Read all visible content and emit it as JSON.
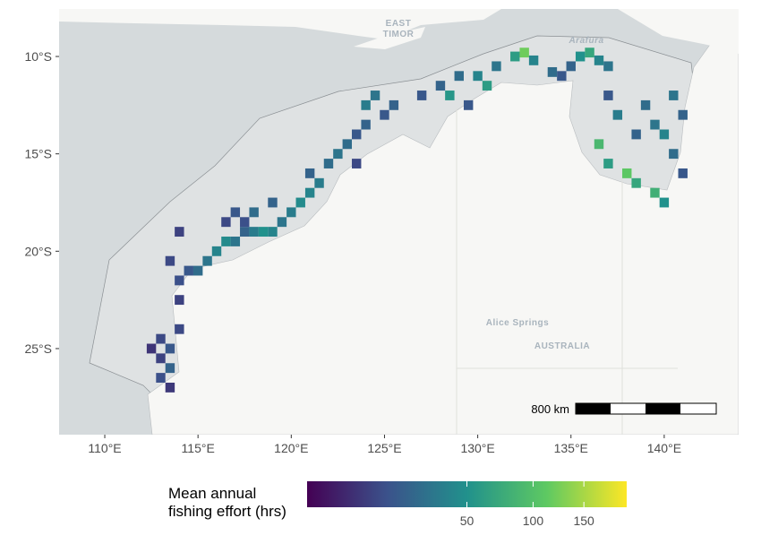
{
  "map": {
    "xlim": [
      107.55,
      143.99
    ],
    "ylim": [
      -29.42,
      -7.56
    ],
    "xticks": [
      {
        "value": 110,
        "label": "110°E"
      },
      {
        "value": 115,
        "label": "115°E"
      },
      {
        "value": 120,
        "label": "120°E"
      },
      {
        "value": 125,
        "label": "125°E"
      },
      {
        "value": 130,
        "label": "130°E"
      },
      {
        "value": 135,
        "label": "135°E"
      },
      {
        "value": 140,
        "label": "140°E"
      }
    ],
    "yticks": [
      {
        "value": -10,
        "label": "10°S"
      },
      {
        "value": -15,
        "label": "15°S"
      },
      {
        "value": -20,
        "label": "20°S"
      },
      {
        "value": -25,
        "label": "25°S"
      }
    ],
    "places": {
      "east_timor": [
        "EAST",
        "TIMOR"
      ],
      "sea": "Arafura",
      "town": "Alice Springs",
      "country": "AUSTRALIA"
    },
    "scale_bar": "800 km",
    "colorbar": {
      "title": "Mean annual\nfishing effort (hrs)",
      "scale": "sqrt",
      "lim": [
        0,
        200
      ],
      "ticks": [
        50,
        100,
        150
      ]
    },
    "cells": {
      "lon": [
        113,
        113.5,
        113,
        113.5,
        113,
        113.5,
        114,
        112.5,
        114,
        114,
        114.5,
        115,
        115.5,
        116,
        113.5,
        114,
        116.5,
        117,
        117.5,
        117,
        117.5,
        118,
        118.5,
        119,
        119.5,
        118,
        119,
        116.5,
        120,
        120.5,
        121,
        121.5,
        121,
        122,
        122.5,
        123,
        123.5,
        124,
        124,
        124.5,
        125,
        123.5,
        125.5,
        127,
        128,
        128.5,
        129,
        130,
        130.5,
        129.5,
        131,
        132,
        132.5,
        133,
        134,
        134.5,
        135.5,
        136,
        136.5,
        137,
        135,
        137,
        137.5,
        136.5,
        137,
        138,
        138.5,
        139.5,
        140,
        139,
        139.5,
        140,
        140.5,
        140.5,
        141,
        141,
        138.5
      ],
      "lat": [
        -24.5,
        -25,
        -25.5,
        -26,
        -26.5,
        -27,
        -24,
        -25,
        -22.5,
        -21.5,
        -21,
        -21,
        -20.5,
        -20,
        -20.5,
        -19,
        -19.5,
        -19.5,
        -19,
        -18,
        -18.5,
        -19,
        -19,
        -19,
        -18.5,
        -18,
        -17.5,
        -18.5,
        -18,
        -17.5,
        -17,
        -16.5,
        -16,
        -15.5,
        -15,
        -14.5,
        -14,
        -13.5,
        -12.5,
        -12,
        -13,
        -15.5,
        -12.5,
        -12,
        -11.5,
        -12,
        -11,
        -11,
        -11.5,
        -12.5,
        -10.5,
        -10,
        -9.8,
        -10.2,
        -10.8,
        -11,
        -10,
        -9.8,
        -10.2,
        -10.5,
        -10.5,
        -12,
        -13,
        -14.5,
        -15.5,
        -16,
        -16.5,
        -17,
        -17.5,
        -12.5,
        -13.5,
        -14,
        -15,
        -12,
        -13,
        -16,
        -14
      ],
      "effort": [
        10,
        15,
        8,
        20,
        12,
        6,
        10,
        5,
        8,
        12,
        15,
        25,
        30,
        40,
        10,
        8,
        45,
        30,
        20,
        15,
        12,
        35,
        50,
        40,
        30,
        25,
        20,
        10,
        35,
        45,
        40,
        35,
        20,
        25,
        30,
        25,
        15,
        20,
        35,
        30,
        15,
        10,
        20,
        15,
        20,
        55,
        25,
        40,
        60,
        15,
        30,
        60,
        120,
        40,
        25,
        15,
        50,
        70,
        40,
        30,
        20,
        15,
        35,
        90,
        60,
        110,
        70,
        80,
        50,
        25,
        30,
        40,
        25,
        30,
        20,
        15,
        20
      ]
    }
  }
}
